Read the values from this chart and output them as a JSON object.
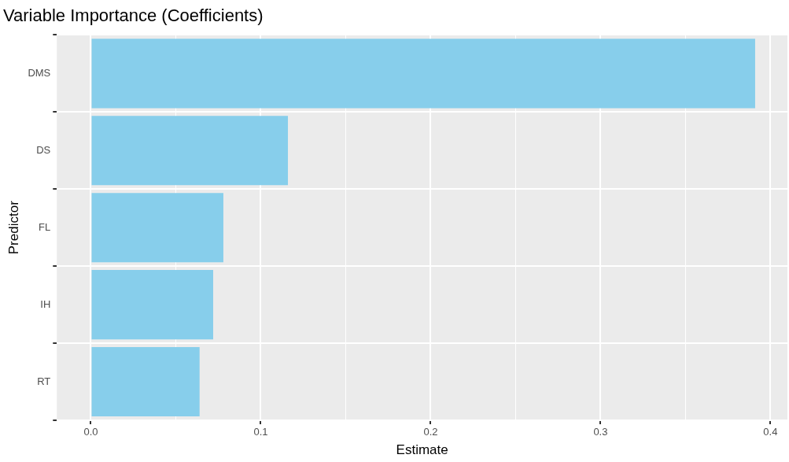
{
  "chart_data": {
    "type": "bar",
    "orientation": "horizontal",
    "title": "Variable Importance (Coefficients)",
    "xlabel": "Estimate",
    "ylabel": "Predictor",
    "categories": [
      "DMS",
      "DS",
      "FL",
      "IH",
      "RT"
    ],
    "values": [
      0.391,
      0.116,
      0.078,
      0.072,
      0.064
    ],
    "color": "#87ceeb",
    "xlim": [
      -0.02,
      0.41
    ],
    "xticks": [
      {
        "value": 0,
        "label": "0.0"
      },
      {
        "value": 0.05,
        "label": null
      },
      0.1,
      {
        "value": 0.15,
        "label": null
      },
      0.2,
      {
        "value": 0.25,
        "label": null
      },
      0.3,
      {
        "value": 0.35,
        "label": null
      },
      0.4
    ],
    "grid": true,
    "legend": false
  }
}
